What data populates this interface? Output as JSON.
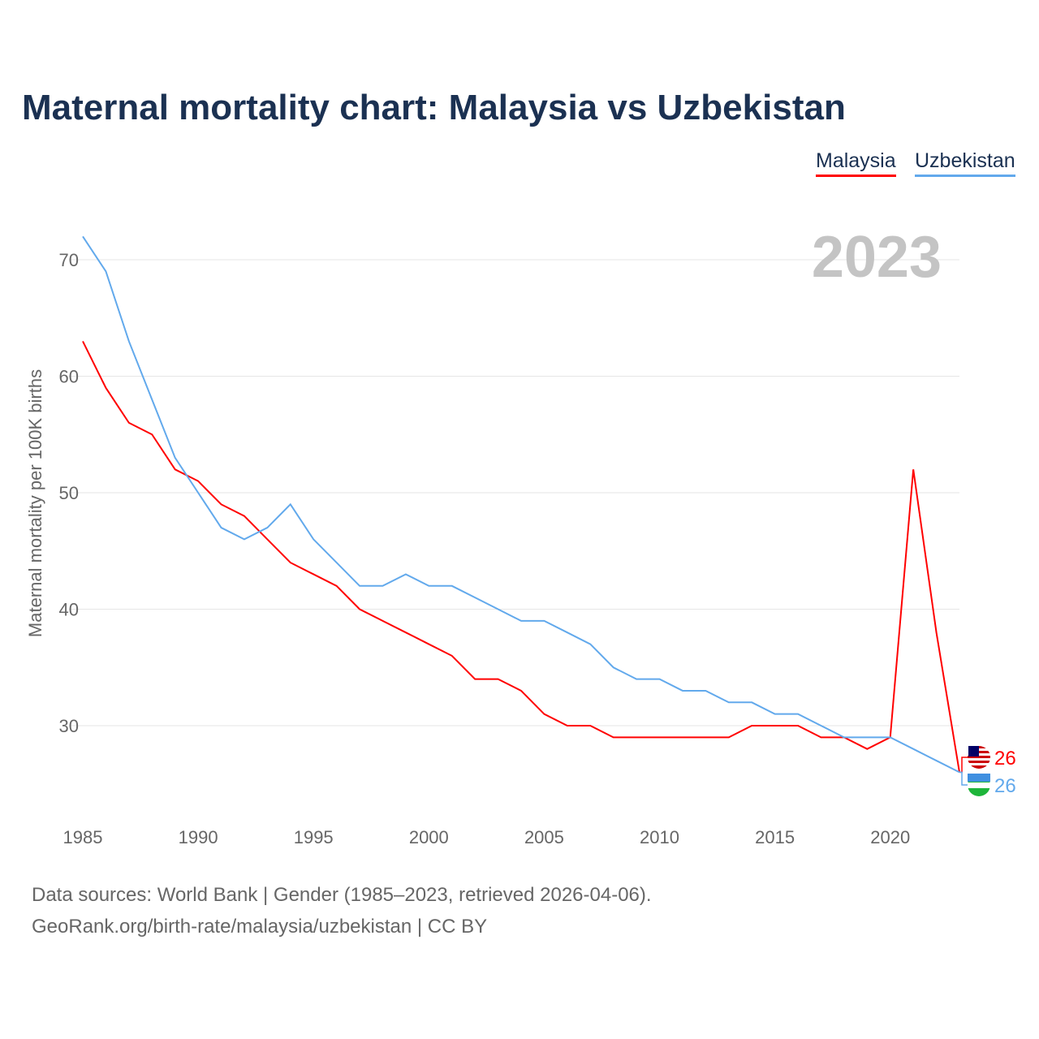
{
  "chart_data": {
    "type": "line",
    "title": "Maternal mortality chart: Malaysia vs Uzbekistan",
    "ylabel": "Maternal mortality per 100K births",
    "xlabel": "",
    "year_label": "2023",
    "xlim": [
      1985,
      2023
    ],
    "ylim": [
      23,
      74
    ],
    "yticks": [
      30,
      40,
      50,
      60,
      70
    ],
    "xticks": [
      1985,
      1990,
      1995,
      2000,
      2005,
      2010,
      2015,
      2020
    ],
    "legend_position": "top-right",
    "x": [
      1985,
      1986,
      1987,
      1988,
      1989,
      1990,
      1991,
      1992,
      1993,
      1994,
      1995,
      1996,
      1997,
      1998,
      1999,
      2000,
      2001,
      2002,
      2003,
      2004,
      2005,
      2006,
      2007,
      2008,
      2009,
      2010,
      2011,
      2012,
      2013,
      2014,
      2015,
      2016,
      2017,
      2018,
      2019,
      2020,
      2021,
      2022,
      2023
    ],
    "series": [
      {
        "name": "Malaysia",
        "color": "#ff0000",
        "end_label": "26",
        "values": [
          63,
          59,
          56,
          55,
          52,
          51,
          49,
          48,
          46,
          44,
          43,
          42,
          40,
          39,
          38,
          37,
          36,
          34,
          34,
          33,
          31,
          30,
          30,
          29,
          29,
          29,
          29,
          29,
          29,
          30,
          30,
          30,
          29,
          29,
          28,
          29,
          52,
          38,
          26
        ]
      },
      {
        "name": "Uzbekistan",
        "color": "#62a9ec",
        "end_label": "26",
        "values": [
          72,
          69,
          63,
          58,
          53,
          50,
          47,
          46,
          47,
          49,
          46,
          44,
          42,
          42,
          43,
          42,
          42,
          41,
          40,
          39,
          39,
          38,
          37,
          35,
          34,
          34,
          33,
          33,
          32,
          32,
          31,
          31,
          30,
          29,
          29,
          29,
          28,
          27,
          26
        ]
      }
    ]
  },
  "footer": {
    "line1": "Data sources: World Bank | Gender (1985–2023, retrieved 2026-04-06).",
    "line2": "GeoRank.org/birth-rate/malaysia/uzbekistan | CC BY"
  }
}
